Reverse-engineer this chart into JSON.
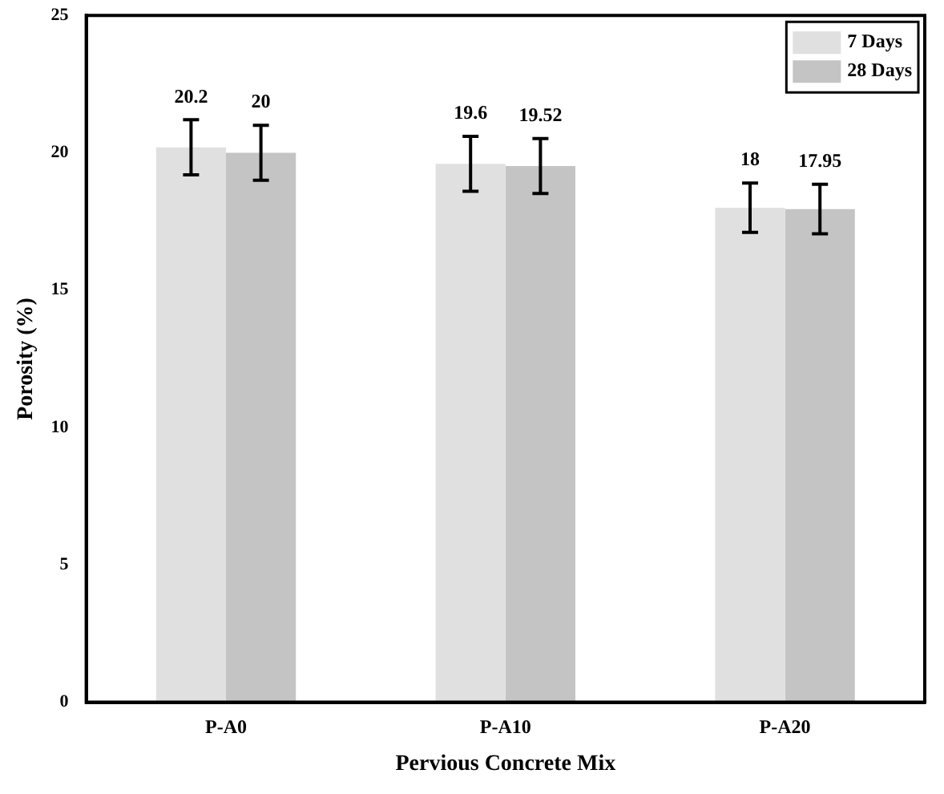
{
  "chart_data": {
    "type": "bar",
    "xlabel": "Pervious Concrete Mix",
    "ylabel": "Porosity (%)",
    "categories": [
      "P-A0",
      "P-A10",
      "P-A20"
    ],
    "series": [
      {
        "name": "7 Days",
        "color": "#e0e0e0",
        "values": [
          20.2,
          19.6,
          18
        ],
        "errors": [
          1,
          1,
          0.9
        ]
      },
      {
        "name": "28 Days",
        "color": "#c4c4c4",
        "values": [
          20,
          19.52,
          17.95
        ],
        "errors": [
          1,
          1,
          0.9
        ]
      }
    ],
    "ylim": [
      0,
      25
    ],
    "yticks": [
      0,
      5,
      10,
      15,
      20,
      25
    ],
    "data_labels": true,
    "legend": "top right",
    "grid": false
  }
}
